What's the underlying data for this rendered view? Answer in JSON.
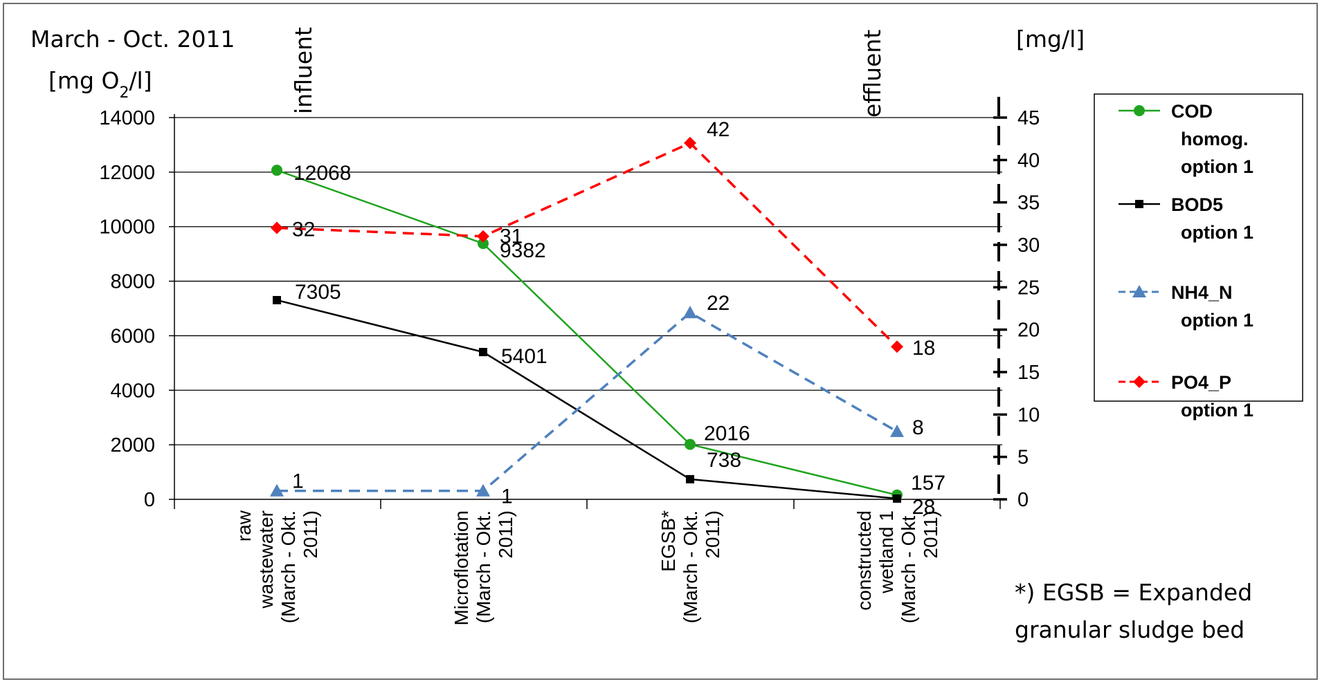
{
  "chart_data": {
    "type": "line",
    "title": "March - Oct. 2011",
    "ylabel_left": "[mg O2/l]",
    "ylabel_right": "[mg/l]",
    "ylim_left": [
      0,
      14000
    ],
    "yticks_left": [
      0,
      2000,
      4000,
      6000,
      8000,
      10000,
      12000,
      14000
    ],
    "ylim_right": [
      0,
      45
    ],
    "yticks_right": [
      0,
      5,
      10,
      15,
      20,
      25,
      30,
      35,
      40,
      45
    ],
    "grid": true,
    "legend_position": "right",
    "categories": [
      [
        "raw",
        "wastewater",
        "(March - Okt.",
        "2011)"
      ],
      [
        "Microflotation",
        "(March - Okt.",
        "2011)"
      ],
      [
        "EGSB*",
        "(March - Okt.",
        "2011)"
      ],
      [
        "constructed",
        "wetland 1",
        "(March - Okt.",
        "2011)"
      ]
    ],
    "annotations": {
      "influent": "influent",
      "effluent": "effluent",
      "footnote_line1": "*) EGSB = Expanded",
      "footnote_line2": "granular sludge bed"
    },
    "series": [
      {
        "name_lines": [
          "COD",
          "homog.",
          "option 1"
        ],
        "axis": "left",
        "color": "#1fa31f",
        "dash": "solid",
        "marker": "circle",
        "values": [
          12068,
          9382,
          2016,
          157
        ],
        "labels": [
          "12068",
          "9382",
          "2016",
          "157"
        ]
      },
      {
        "name_lines": [
          "BOD5",
          "option 1"
        ],
        "axis": "left",
        "color": "#000000",
        "dash": "solid",
        "marker": "square",
        "values": [
          7305,
          5401,
          738,
          28
        ],
        "labels": [
          "7305",
          "5401",
          "738",
          "28"
        ]
      },
      {
        "name_lines": [
          "NH4_N",
          "option 1"
        ],
        "axis": "right",
        "color": "#4f81bd",
        "dash": "dashed",
        "marker": "triangle",
        "values": [
          1,
          1,
          22,
          8
        ],
        "labels": [
          "1",
          "1",
          "22",
          "8"
        ]
      },
      {
        "name_lines": [
          "PO4_P",
          "option 1"
        ],
        "axis": "right",
        "color": "#ff0000",
        "dash": "dashed",
        "marker": "diamond",
        "values": [
          32,
          31,
          42,
          18
        ],
        "labels": [
          "32",
          "31",
          "42",
          "18"
        ]
      }
    ]
  }
}
